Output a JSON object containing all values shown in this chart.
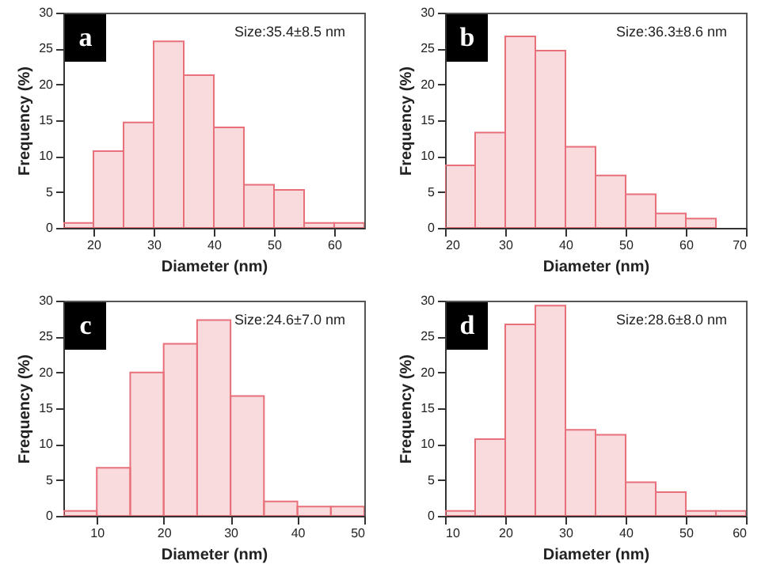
{
  "chart_data": [
    {
      "type": "histogram",
      "xlabel": "Diameter (nm)",
      "ylabel": "Frequency (%)",
      "annotations": [
        "a",
        "Size:35.4±8.5 nm"
      ],
      "bins": [
        15,
        20,
        25,
        30,
        35,
        40,
        45,
        50,
        55,
        60,
        65
      ],
      "values": [
        0.7,
        10.7,
        14.7,
        26,
        21.3,
        14,
        6,
        5.3,
        0.7,
        0.7
      ],
      "color": "#e8707a",
      "xlim": [
        15,
        65
      ],
      "xticks": [
        20,
        30,
        40,
        50,
        60
      ],
      "ylim": [
        0,
        30
      ],
      "yticks": [
        0,
        5,
        10,
        15,
        20,
        25,
        30
      ],
      "grid": false
    },
    {
      "type": "histogram",
      "xlabel": "Diameter (nm)",
      "ylabel": "Frequency (%)",
      "annotations": [
        "b",
        "Size:36.3±8.6 nm"
      ],
      "bins": [
        20,
        25,
        30,
        35,
        40,
        45,
        50,
        55,
        60,
        65
      ],
      "values": [
        8.7,
        13.3,
        26.7,
        24.7,
        11.3,
        7.3,
        4.7,
        2,
        1.3
      ],
      "color": "#e8707a",
      "xlim": [
        20,
        70
      ],
      "xticks": [
        20,
        30,
        40,
        50,
        60,
        70
      ],
      "ylim": [
        0,
        30
      ],
      "yticks": [
        0,
        5,
        10,
        15,
        20,
        25,
        30
      ],
      "grid": false
    },
    {
      "type": "histogram",
      "xlabel": "Diameter (nm)",
      "ylabel": "Frequency (%)",
      "annotations": [
        "c",
        "Size:24.6±7.0 nm"
      ],
      "bins": [
        5,
        10,
        15,
        20,
        25,
        30,
        35,
        40,
        45,
        50
      ],
      "values": [
        0.7,
        6.7,
        20,
        24,
        27.3,
        16.7,
        2,
        1.3,
        1.3
      ],
      "color": "#e8707a",
      "xlim": [
        5,
        50
      ],
      "xticks": [
        10,
        20,
        30,
        40,
        50
      ],
      "ylim": [
        0,
        30
      ],
      "yticks": [
        0,
        5,
        10,
        15,
        20,
        25,
        30
      ],
      "grid": false
    },
    {
      "type": "histogram",
      "xlabel": "Diameter (nm)",
      "ylabel": "Frequency (%)",
      "annotations": [
        "d",
        "Size:28.6±8.0 nm"
      ],
      "bins": [
        10,
        15,
        20,
        25,
        30,
        35,
        40,
        45,
        50,
        55,
        60
      ],
      "values": [
        0.7,
        10.7,
        26.7,
        29.3,
        12,
        11.3,
        4.7,
        3.3,
        0.7,
        0.7
      ],
      "color": "#e8707a",
      "xlim": [
        10,
        60
      ],
      "xticks": [
        10,
        20,
        30,
        40,
        50,
        60
      ],
      "ylim": [
        0,
        30
      ],
      "yticks": [
        0,
        5,
        10,
        15,
        20,
        25,
        30
      ],
      "grid": false
    }
  ]
}
